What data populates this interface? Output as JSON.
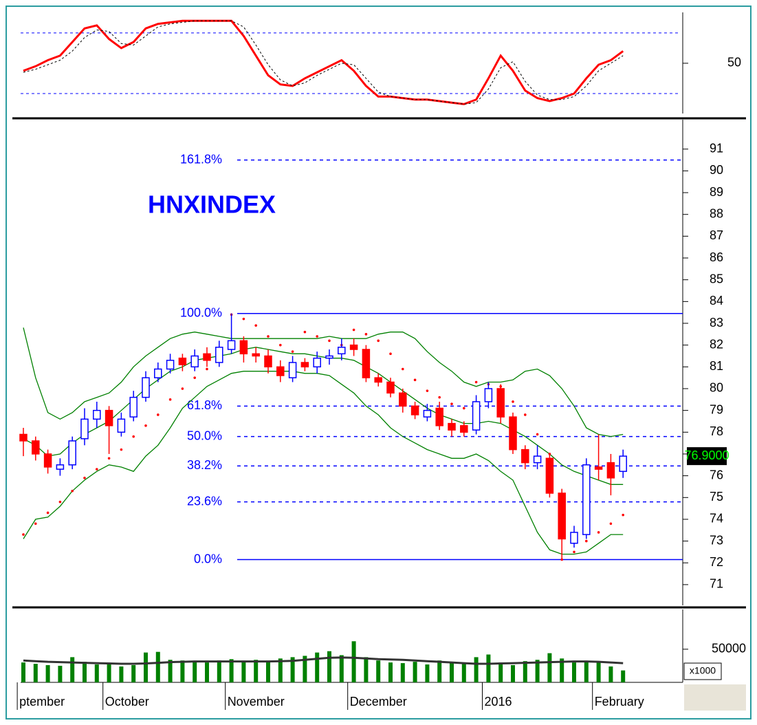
{
  "chart_data": [
    {
      "type": "line",
      "ylim": [
        16.8,
        83.6
      ],
      "yticks": [
        50
      ],
      "levels": [
        70,
        30
      ],
      "level_color": "#0000ff",
      "series": [
        {
          "color": "#ff0000",
          "values": [
            45,
            48,
            52,
            55,
            64,
            73,
            75,
            66,
            60,
            64,
            73,
            76,
            77,
            78,
            78,
            78,
            78,
            78,
            68,
            55,
            42,
            36,
            35,
            40,
            44,
            48,
            52,
            45,
            35,
            28,
            28,
            27,
            26,
            26,
            25,
            24,
            23,
            26,
            40,
            55,
            45,
            32,
            27,
            25,
            27,
            30,
            40,
            49,
            52,
            58
          ]
        },
        {
          "color": "#000000",
          "dashed": true,
          "values": [
            44,
            46,
            49,
            52,
            58,
            67,
            72,
            71,
            63,
            62,
            68,
            74,
            76,
            77,
            78,
            78,
            78,
            78,
            74,
            62,
            49,
            39,
            35,
            37,
            42,
            46,
            50,
            49,
            40,
            31,
            28,
            27,
            26,
            26,
            25,
            24,
            23,
            24,
            33,
            47,
            51,
            38,
            29,
            26,
            26,
            28,
            35,
            45,
            50,
            55
          ]
        }
      ]
    },
    {
      "type": "candlestick",
      "title": "HNXINDEX",
      "ylim": [
        70.05,
        92.35
      ],
      "yticks": [
        71,
        72,
        73,
        74,
        75,
        76,
        77,
        78,
        79,
        80,
        81,
        82,
        83,
        84,
        85,
        86,
        87,
        88,
        89,
        90,
        91
      ],
      "up_color": "#0000ff",
      "down_color": "#ff0000",
      "open": [
        77.9,
        77.6,
        77.0,
        76.3,
        76.5,
        77.7,
        78.6,
        79.0,
        78.0,
        78.7,
        79.6,
        80.5,
        80.9,
        81.4,
        81.0,
        81.6,
        81.2,
        81.8,
        82.2,
        81.6,
        81.5,
        81.0,
        80.5,
        81.2,
        81.0,
        81.4,
        81.6,
        82.0,
        81.8,
        80.5,
        80.3,
        79.8,
        79.2,
        78.7,
        79.1,
        78.4,
        78.3,
        78.1,
        79.4,
        80.0,
        78.7,
        77.2,
        76.6,
        76.8,
        75.2,
        72.9,
        73.3,
        76.4,
        76.6,
        76.2
      ],
      "high": [
        78.2,
        77.8,
        77.2,
        76.8,
        77.8,
        79.1,
        79.4,
        79.2,
        78.9,
        79.9,
        80.8,
        81.2,
        81.6,
        81.6,
        81.8,
        81.9,
        82.2,
        83.45,
        82.4,
        81.9,
        81.8,
        81.3,
        81.5,
        81.4,
        81.7,
        81.8,
        82.3,
        82.3,
        82.0,
        80.7,
        80.5,
        80.0,
        79.4,
        79.3,
        79.4,
        78.6,
        78.5,
        79.7,
        80.3,
        80.2,
        78.9,
        77.4,
        77.4,
        77.0,
        75.4,
        73.7,
        76.8,
        77.9,
        77.0,
        77.2
      ],
      "low": [
        76.9,
        76.7,
        76.1,
        76.0,
        76.3,
        77.4,
        78.2,
        77.0,
        77.8,
        78.5,
        79.4,
        80.3,
        80.7,
        80.8,
        80.8,
        81.0,
        81.0,
        81.6,
        81.2,
        81.2,
        80.7,
        80.3,
        80.3,
        80.8,
        80.7,
        81.1,
        81.3,
        81.5,
        80.3,
        80.1,
        79.6,
        78.9,
        78.6,
        78.5,
        78.1,
        77.8,
        77.8,
        77.9,
        79.1,
        78.4,
        77.0,
        76.3,
        76.3,
        75.0,
        72.15,
        72.7,
        73.1,
        75.8,
        75.1,
        75.9
      ],
      "close": [
        77.6,
        77.0,
        76.4,
        76.5,
        77.6,
        78.6,
        79.0,
        78.3,
        78.6,
        79.6,
        80.5,
        80.9,
        81.3,
        81.1,
        81.5,
        81.3,
        81.9,
        82.2,
        81.6,
        81.5,
        81.0,
        80.6,
        81.2,
        81.0,
        81.4,
        81.5,
        81.9,
        81.8,
        80.5,
        80.3,
        79.8,
        79.2,
        78.8,
        79.0,
        78.3,
        78.1,
        78.0,
        79.4,
        80.0,
        78.7,
        77.2,
        76.6,
        76.9,
        75.2,
        73.1,
        73.4,
        76.5,
        76.3,
        75.9,
        76.9
      ],
      "overlays": [
        {
          "color": "#008000",
          "values": [
            82.8,
            80.5,
            78.9,
            78.6,
            78.9,
            79.4,
            79.6,
            79.8,
            80.3,
            81.0,
            81.5,
            81.9,
            82.3,
            82.5,
            82.6,
            82.5,
            82.4,
            82.3,
            82.3,
            82.3,
            82.3,
            82.3,
            82.3,
            82.3,
            82.3,
            82.4,
            82.3,
            82.3,
            82.3,
            82.5,
            82.6,
            82.6,
            82.3,
            81.7,
            81.2,
            80.8,
            80.3,
            80.1,
            80.3,
            80.3,
            80.4,
            80.8,
            80.9,
            80.6,
            80.0,
            79.2,
            78.2,
            77.9,
            77.8,
            77.9
          ]
        },
        {
          "color": "#008000",
          "values": [
            77.7,
            77.4,
            76.9,
            77.0,
            77.5,
            77.9,
            78.2,
            78.5,
            79.0,
            79.5,
            80.0,
            80.4,
            80.8,
            81.0,
            81.3,
            81.4,
            81.5,
            81.6,
            81.8,
            81.9,
            81.8,
            81.7,
            81.6,
            81.6,
            81.5,
            81.4,
            81.4,
            81.3,
            81.0,
            80.7,
            80.3,
            79.9,
            79.5,
            79.1,
            78.8,
            78.6,
            78.4,
            78.4,
            78.5,
            78.4,
            78.1,
            77.8,
            77.4,
            77.0,
            76.5,
            76.2,
            76.0,
            75.8,
            75.6,
            75.6
          ]
        },
        {
          "color": "#008000",
          "values": [
            73.1,
            74.0,
            74.1,
            74.6,
            75.3,
            75.8,
            76.2,
            76.5,
            76.4,
            76.2,
            76.9,
            77.4,
            78.2,
            79.1,
            79.6,
            80.1,
            80.4,
            80.7,
            80.8,
            80.8,
            80.8,
            80.8,
            80.8,
            80.7,
            80.7,
            80.6,
            80.2,
            79.8,
            79.2,
            78.8,
            78.2,
            77.8,
            77.5,
            77.2,
            77.0,
            76.8,
            76.8,
            77.0,
            76.7,
            76.2,
            75.8,
            74.6,
            73.4,
            72.6,
            72.4,
            72.4,
            72.5,
            72.9,
            73.3,
            73.3
          ]
        }
      ],
      "sar": {
        "color": "#ff0000",
        "values": [
          73.3,
          73.8,
          74.3,
          74.8,
          75.3,
          75.9,
          76.3,
          76.8,
          77.2,
          77.8,
          78.3,
          78.8,
          79.5,
          80.0,
          80.5,
          80.9,
          81.3,
          83.4,
          83.2,
          82.9,
          82.4,
          82.0,
          81.7,
          82.6,
          82.4,
          82.2,
          82.0,
          82.7,
          82.5,
          82.2,
          81.6,
          80.9,
          80.4,
          79.9,
          79.6,
          79.3,
          79.1,
          80.3,
          80.2,
          80.1,
          79.4,
          78.8,
          77.9,
          77.0,
          72.15,
          72.5,
          73.0,
          73.4,
          73.8,
          74.2
        ]
      },
      "fibonacci": [
        {
          "value": 72.15,
          "label": "0.0%",
          "solid": true
        },
        {
          "value": 74.8,
          "label": "23.6%"
        },
        {
          "value": 76.45,
          "label": "38.2%"
        },
        {
          "value": 77.8,
          "label": "50.0%"
        },
        {
          "value": 79.2,
          "label": "61.8%"
        },
        {
          "value": 83.45,
          "label": "100.0%",
          "solid": true
        },
        {
          "value": 90.5,
          "label": "161.8%"
        }
      ],
      "fib_color": "#0000ff",
      "last_value": 76.9,
      "last_label": "76.9000"
    },
    {
      "type": "bar",
      "ylim": [
        0,
        110000
      ],
      "yticks": [
        50000
      ],
      "unit_label": "x1000",
      "color": "#008000",
      "categories": [
        "ptember",
        null,
        null,
        null,
        null,
        null,
        null,
        "October",
        null,
        null,
        null,
        null,
        null,
        null,
        null,
        null,
        null,
        "November",
        null,
        null,
        null,
        null,
        null,
        null,
        null,
        null,
        null,
        "December",
        null,
        null,
        null,
        null,
        null,
        null,
        null,
        null,
        null,
        null,
        "2016",
        null,
        null,
        null,
        null,
        null,
        null,
        null,
        null,
        "February",
        null,
        null
      ],
      "values": [
        30000,
        28000,
        26000,
        25000,
        38000,
        31000,
        27000,
        28000,
        24000,
        26000,
        45000,
        46000,
        34000,
        33000,
        31000,
        30000,
        33000,
        35000,
        32000,
        34000,
        31000,
        36000,
        38000,
        40000,
        45000,
        47000,
        41000,
        62000,
        38000,
        33000,
        30000,
        29000,
        31000,
        27000,
        33000,
        30000,
        30000,
        38000,
        42000,
        30000,
        26000,
        32000,
        34000,
        44000,
        36000,
        30000,
        31000,
        30000,
        24000,
        18000
      ],
      "average": {
        "color": "#333333",
        "values": [
          33000,
          32000,
          31000,
          30500,
          30000,
          29500,
          29000,
          28500,
          28000,
          28000,
          28500,
          29500,
          30500,
          31000,
          31500,
          31500,
          31500,
          31500,
          31500,
          31500,
          31500,
          32000,
          32500,
          34000,
          35500,
          37000,
          37500,
          37000,
          36000,
          35000,
          34500,
          34000,
          33000,
          32000,
          31000,
          30000,
          29000,
          28000,
          28000,
          28500,
          29000,
          29500,
          30000,
          30500,
          31000,
          31500,
          31500,
          31000,
          30000,
          29000
        ]
      }
    }
  ]
}
